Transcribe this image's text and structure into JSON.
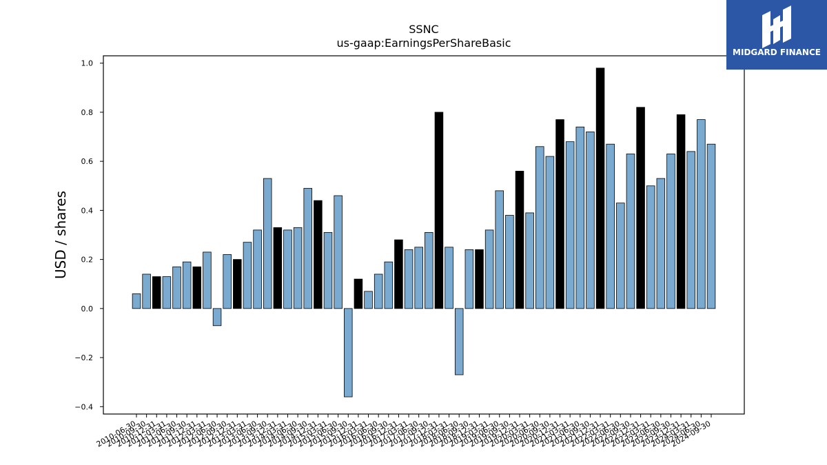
{
  "chart_data": {
    "type": "bar",
    "title": "SSNC",
    "subtitle": "us-gaap:EarningsPerShareBasic",
    "xlabel": "",
    "ylabel": "USD / shares",
    "ylim": [
      -0.43,
      1.03
    ],
    "yticks": [
      -0.4,
      -0.2,
      0.0,
      0.2,
      0.4,
      0.6,
      0.8,
      1.0
    ],
    "ytick_labels": [
      "−0.4",
      "−0.2",
      "0.0",
      "0.2",
      "0.4",
      "0.6",
      "0.8",
      "1.0"
    ],
    "grid": false,
    "colors": {
      "quarter": "#7aaad0",
      "annual": "#000000",
      "edge": "#000000"
    },
    "categories": [
      "2010-06-30",
      "2010-09-30",
      "2010-12-31",
      "2011-03-31",
      "2011-06-30",
      "2011-09-30",
      "2011-12-31",
      "2012-03-31",
      "2012-06-30",
      "2012-09-30",
      "2012-12-31",
      "2013-03-31",
      "2013-06-30",
      "2013-09-30",
      "2013-12-31",
      "2014-03-31",
      "2014-06-30",
      "2014-09-30",
      "2014-12-31",
      "2015-03-31",
      "2015-06-30",
      "2015-09-30",
      "2015-12-31",
      "2016-03-31",
      "2016-06-30",
      "2016-09-30",
      "2016-12-31",
      "2017-03-31",
      "2017-06-30",
      "2017-09-30",
      "2017-12-31",
      "2018-03-31",
      "2018-06-30",
      "2018-09-30",
      "2018-12-31",
      "2019-03-31",
      "2019-06-30",
      "2019-09-30",
      "2019-12-31",
      "2020-03-31",
      "2020-06-30",
      "2020-09-30",
      "2020-12-31",
      "2021-03-31",
      "2021-06-30",
      "2021-09-30",
      "2021-12-31",
      "2022-03-31",
      "2022-06-30",
      "2022-09-30",
      "2022-12-31",
      "2023-03-31",
      "2023-06-30",
      "2023-09-30",
      "2023-12-31",
      "2024-03-31",
      "2024-06-30",
      "2024-09-30"
    ],
    "values": [
      0.06,
      0.14,
      0.13,
      0.13,
      0.17,
      0.19,
      0.17,
      0.23,
      -0.07,
      0.22,
      0.2,
      0.27,
      0.32,
      0.53,
      0.33,
      0.32,
      0.33,
      0.49,
      0.44,
      0.31,
      0.46,
      -0.36,
      0.12,
      0.07,
      0.14,
      0.19,
      0.28,
      0.24,
      0.25,
      0.31,
      0.8,
      0.25,
      -0.27,
      0.24,
      0.24,
      0.32,
      0.48,
      0.38,
      0.56,
      0.39,
      0.66,
      0.62,
      0.77,
      0.68,
      0.74,
      0.72,
      0.98,
      0.67,
      0.43,
      0.63,
      0.82,
      0.5,
      0.53,
      0.63,
      0.79,
      0.64,
      0.77,
      0.67
    ],
    "annual": [
      false,
      false,
      true,
      false,
      false,
      false,
      true,
      false,
      false,
      false,
      true,
      false,
      false,
      false,
      true,
      false,
      false,
      false,
      true,
      false,
      false,
      false,
      true,
      false,
      false,
      false,
      true,
      false,
      false,
      false,
      true,
      false,
      false,
      false,
      true,
      false,
      false,
      false,
      true,
      false,
      false,
      false,
      true,
      false,
      false,
      false,
      true,
      false,
      false,
      false,
      true,
      false,
      false,
      false,
      true,
      false,
      false,
      false
    ]
  },
  "logo": {
    "text": "MIDGARD FINANCE",
    "color": "#2b57a6"
  }
}
